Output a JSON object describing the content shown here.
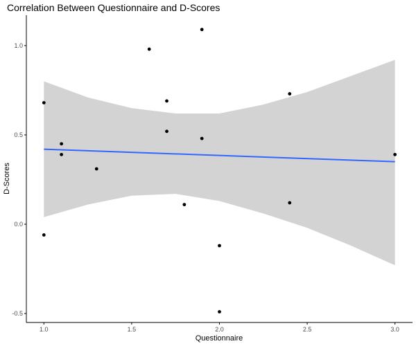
{
  "chart_data": {
    "type": "scatter",
    "title": "Correlation Between Questionnaire and D-Scores",
    "xlabel": "Questionnaire",
    "ylabel": "D-Scores",
    "xlim": [
      0.9,
      3.1
    ],
    "ylim": [
      -0.55,
      1.17
    ],
    "x_ticks": [
      {
        "value": 1.0,
        "label": "1.0"
      },
      {
        "value": 1.5,
        "label": "1.5"
      },
      {
        "value": 2.0,
        "label": "2.0"
      },
      {
        "value": 2.5,
        "label": "2.5"
      },
      {
        "value": 3.0,
        "label": "3.0"
      }
    ],
    "y_ticks": [
      {
        "value": -0.5,
        "label": "-0.5"
      },
      {
        "value": 0.0,
        "label": "0.0"
      },
      {
        "value": 0.5,
        "label": "0.5"
      },
      {
        "value": 1.0,
        "label": "1.0"
      }
    ],
    "points": [
      {
        "x": 1.0,
        "y": 0.68
      },
      {
        "x": 1.0,
        "y": -0.06
      },
      {
        "x": 1.1,
        "y": 0.45
      },
      {
        "x": 1.1,
        "y": 0.39
      },
      {
        "x": 1.3,
        "y": 0.31
      },
      {
        "x": 1.6,
        "y": 0.98
      },
      {
        "x": 1.7,
        "y": 0.69
      },
      {
        "x": 1.7,
        "y": 0.52
      },
      {
        "x": 1.8,
        "y": 0.11
      },
      {
        "x": 1.9,
        "y": 1.09
      },
      {
        "x": 1.9,
        "y": 0.48
      },
      {
        "x": 2.0,
        "y": -0.12
      },
      {
        "x": 2.0,
        "y": -0.49
      },
      {
        "x": 2.4,
        "y": 0.73
      },
      {
        "x": 2.4,
        "y": 0.12
      },
      {
        "x": 3.0,
        "y": 0.39
      }
    ],
    "fit_line": {
      "x": [
        1.0,
        3.0
      ],
      "y": [
        0.42,
        0.35
      ]
    },
    "confidence_band": {
      "x": [
        1.0,
        1.25,
        1.5,
        1.75,
        2.0,
        2.25,
        2.5,
        2.75,
        3.0
      ],
      "lower": [
        0.04,
        0.11,
        0.16,
        0.17,
        0.13,
        0.06,
        -0.02,
        -0.12,
        -0.23
      ],
      "upper": [
        0.8,
        0.71,
        0.65,
        0.62,
        0.62,
        0.67,
        0.74,
        0.83,
        0.92
      ]
    },
    "grid": false,
    "legend": "none",
    "colors": {
      "points": "#000000",
      "fit_line": "#3366ff",
      "confidence_band": "#d3d3d3",
      "axis": "#000000",
      "tick_label": "#4d4d4d"
    }
  }
}
